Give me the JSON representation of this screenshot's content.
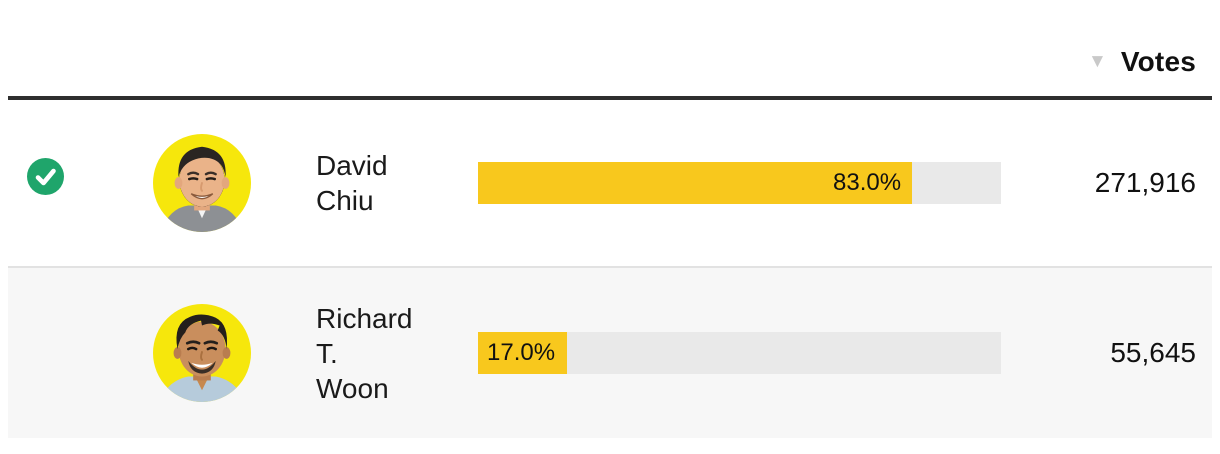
{
  "header": {
    "sort_icon": "▼",
    "votes_label": "Votes"
  },
  "colors": {
    "bar_fill": "#f8c81d",
    "bar_track": "#e9e9e9",
    "avatar_bg": "#f6e70c",
    "winner_green": "#1fa56b",
    "alt_row_bg": "#f7f7f7",
    "header_rule": "#2e2e2e"
  },
  "rows": [
    {
      "name": "David Chiu",
      "percent_label": "83.0%",
      "percent_value": 83,
      "votes": "271,916",
      "winner": true
    },
    {
      "name": "Richard T. Woon",
      "percent_label": "17.0%",
      "percent_value": 17,
      "votes": "55,645",
      "winner": false
    }
  ]
}
